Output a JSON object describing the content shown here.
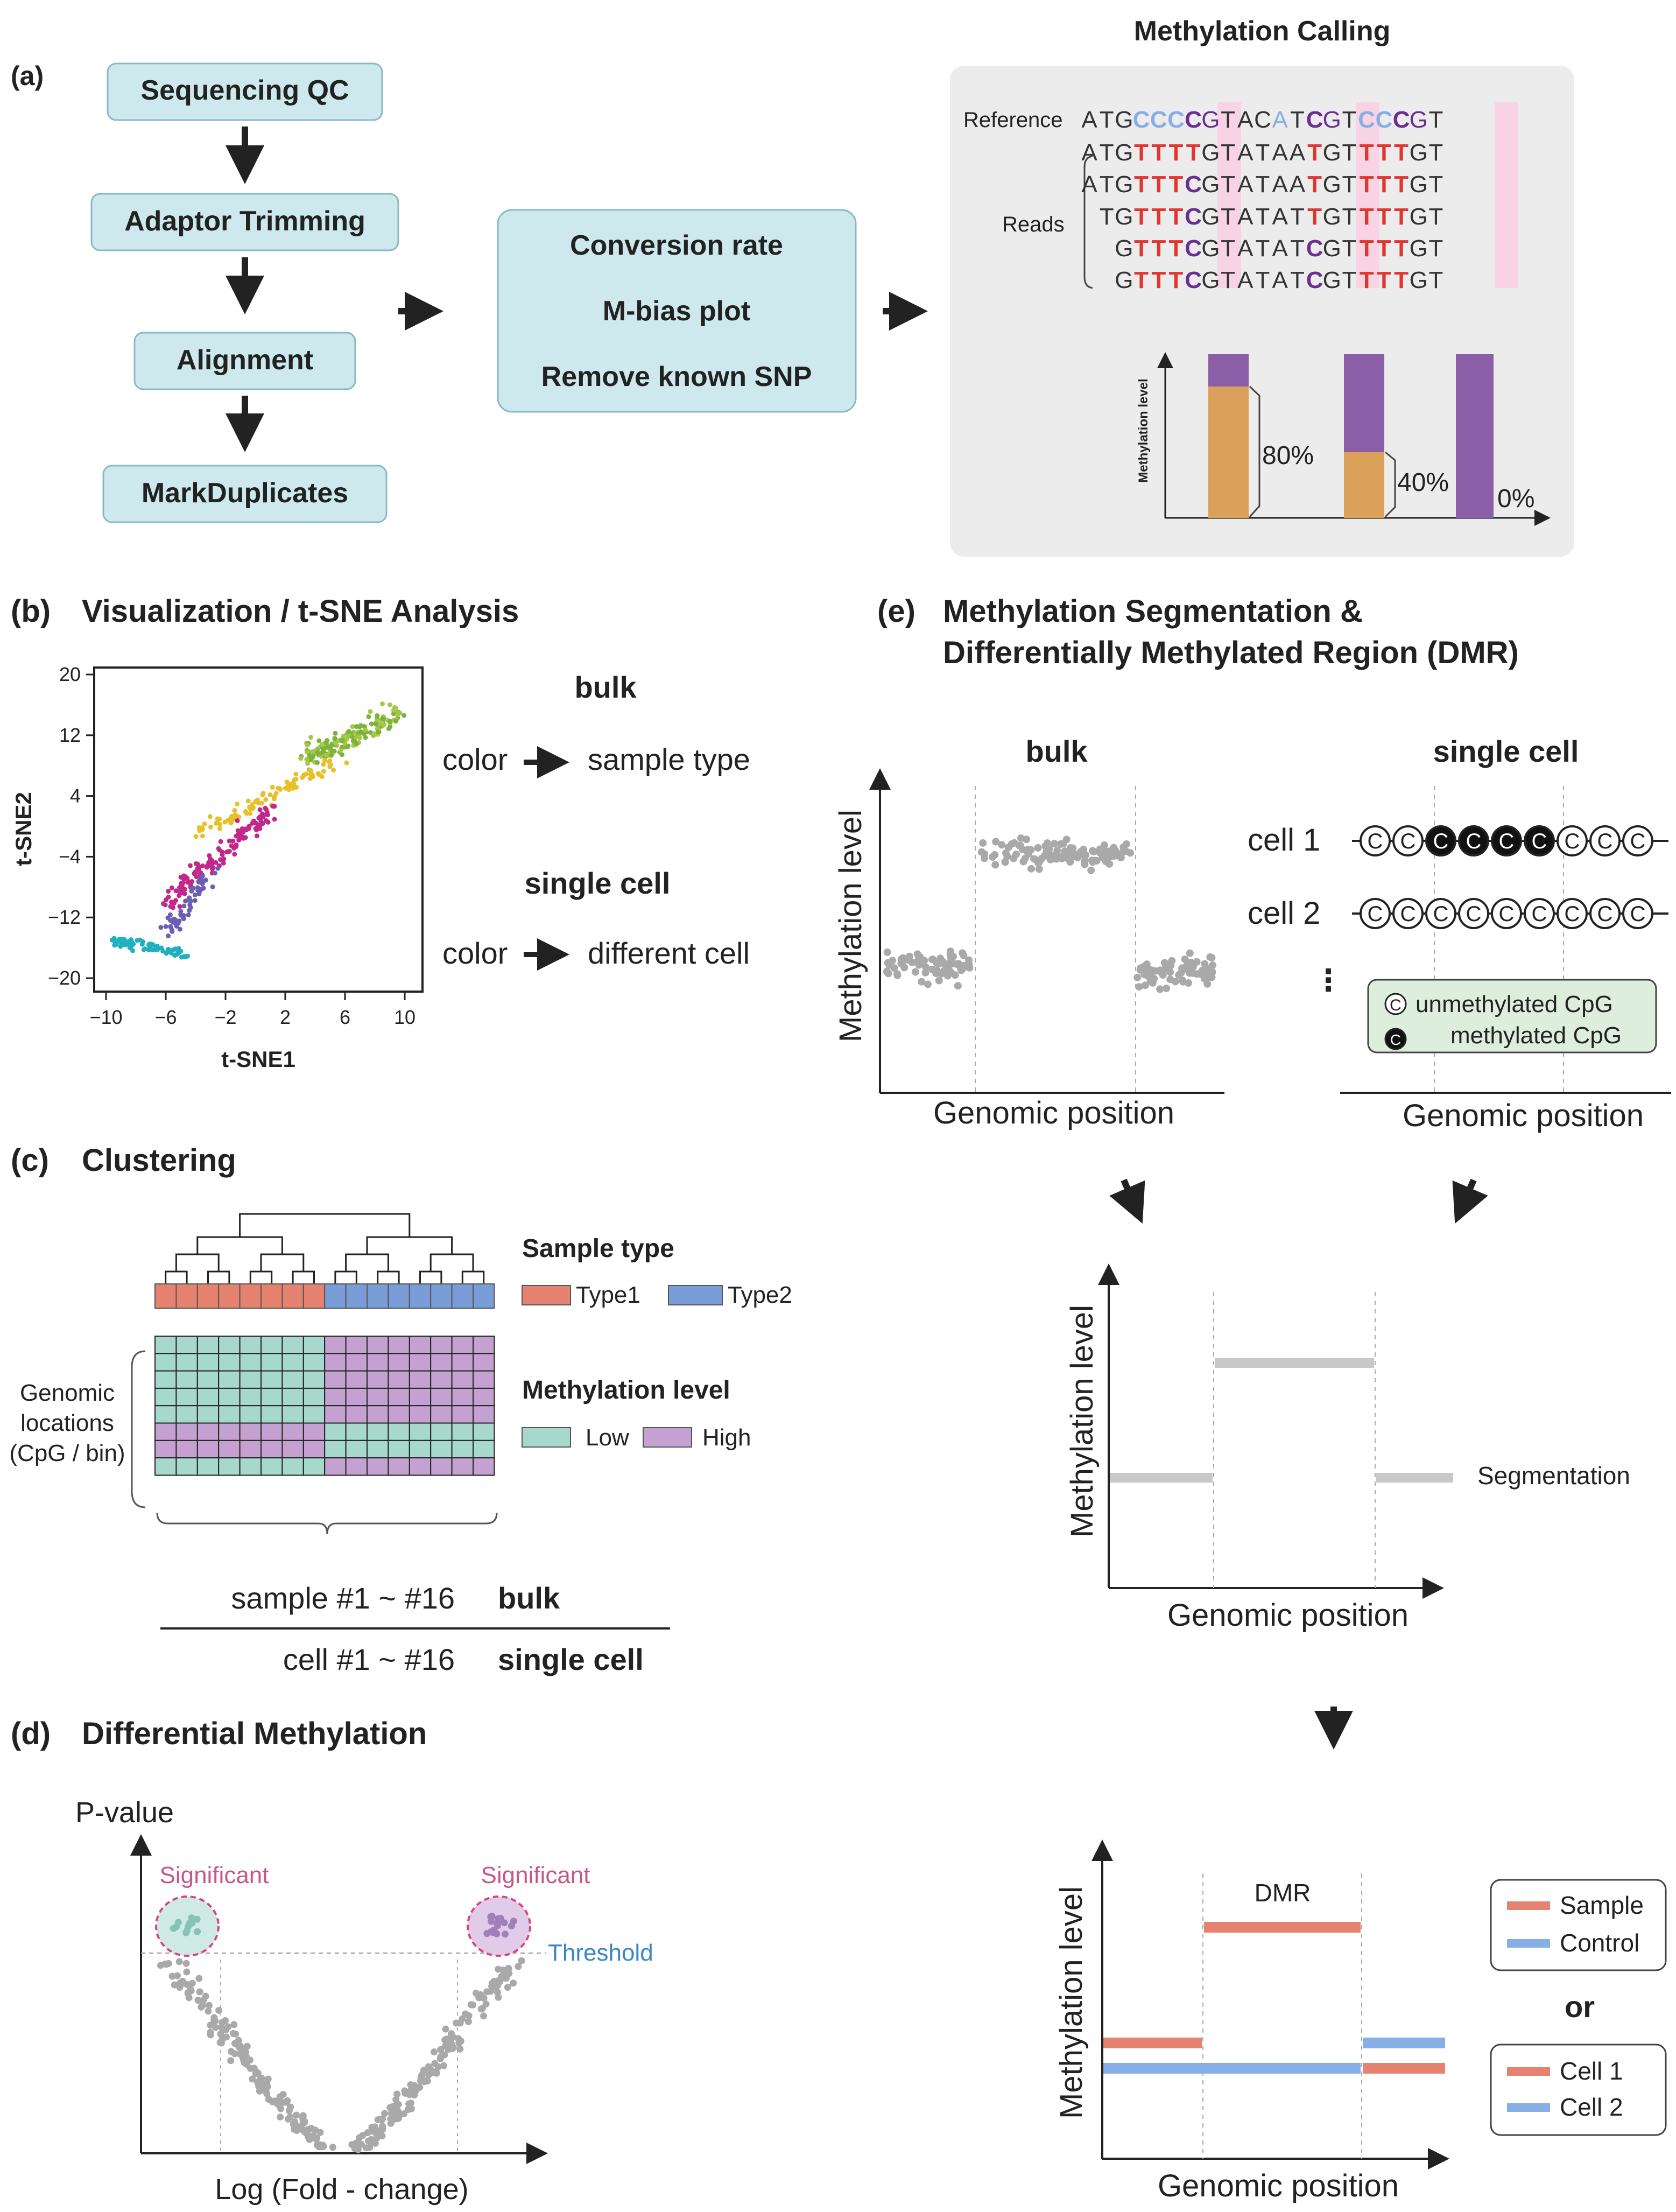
{
  "panels": {
    "a": {
      "letter": "(a)",
      "steps": [
        "Sequencing QC",
        "Adaptor Trimming",
        "Alignment",
        "MarkDuplicates"
      ],
      "qc": [
        "Conversion rate",
        "M-bias plot",
        "Remove known SNP"
      ],
      "calling_title": "Methylation Calling",
      "reference_label": "Reference",
      "reads_label": "Reads",
      "reference_seq": "ATGCCCCGTACATCGTCCCGT",
      "reads": [
        "ATGTTTTGTATAATGTTTTGT",
        "ATGTTTCGTATAATGTTTTGT",
        "TGTTTCGTATATTGTTTTGT",
        "GTTTCGTATATCGTTTTGT",
        "GTTTCGTATATCGTTTTGT"
      ],
      "mlevel_label": "Methylation level",
      "pct": [
        "80%",
        "40%",
        "0%"
      ]
    },
    "b": {
      "letter": "(b)",
      "title": "Visualization / t-SNE Analysis",
      "xlabel": "t-SNE1",
      "ylabel": "t-SNE2",
      "xticks": [
        "−10",
        "−6",
        "−2",
        "2",
        "6",
        "10"
      ],
      "yticks": [
        "20",
        "12",
        "4",
        "−4",
        "−12",
        "−20"
      ],
      "bulk": "bulk",
      "single": "single cell",
      "color": "color",
      "sample_type": "sample type",
      "diff_cell": "different cell"
    },
    "c": {
      "letter": "(c)",
      "title": "Clustering",
      "sample_type": "Sample type",
      "type1": "Type1",
      "type2": "Type2",
      "mlevel": "Methylation level",
      "low": "Low",
      "high": "High",
      "genomic": [
        "Genomic",
        "locations",
        "(CpG / bin)"
      ],
      "samples": "sample #1 ~ #16",
      "bulk": "bulk",
      "cells": "cell #1 ~ #16",
      "single": "single cell"
    },
    "d": {
      "letter": "(d)",
      "title": "Differential Methylation",
      "ylabel": "P-value",
      "xlabel": "Log (Fold - change)",
      "significant": "Significant",
      "threshold": "Threshold"
    },
    "e": {
      "letter": "(e)",
      "title1": "Methylation Segmentation &",
      "title2": "Differentially Methylated Region (DMR)",
      "bulk": "bulk",
      "single": "single cell",
      "ylabel": "Methylation level",
      "xlabel": "Genomic position",
      "cell1": "cell 1",
      "cell2": "cell 2",
      "dots": "⋮",
      "unmeth": "unmethylated CpG",
      "meth": "methylated CpG",
      "segmentation": "Segmentation",
      "dmr": "DMR",
      "sample": "Sample",
      "control": "Control",
      "or": "or",
      "cell1b": "Cell 1",
      "cell2b": "Cell 2"
    }
  },
  "colors": {
    "box": "#cde9ee",
    "type1": "#e58370",
    "type2": "#7a9dd8",
    "low": "#a6d8cc",
    "high": "#c5a1d2",
    "orange": "#dba15a",
    "purple": "#8b5ea8",
    "red": "#e0362f",
    "blue": "#88aee6",
    "magenta": "#6c2d93"
  }
}
